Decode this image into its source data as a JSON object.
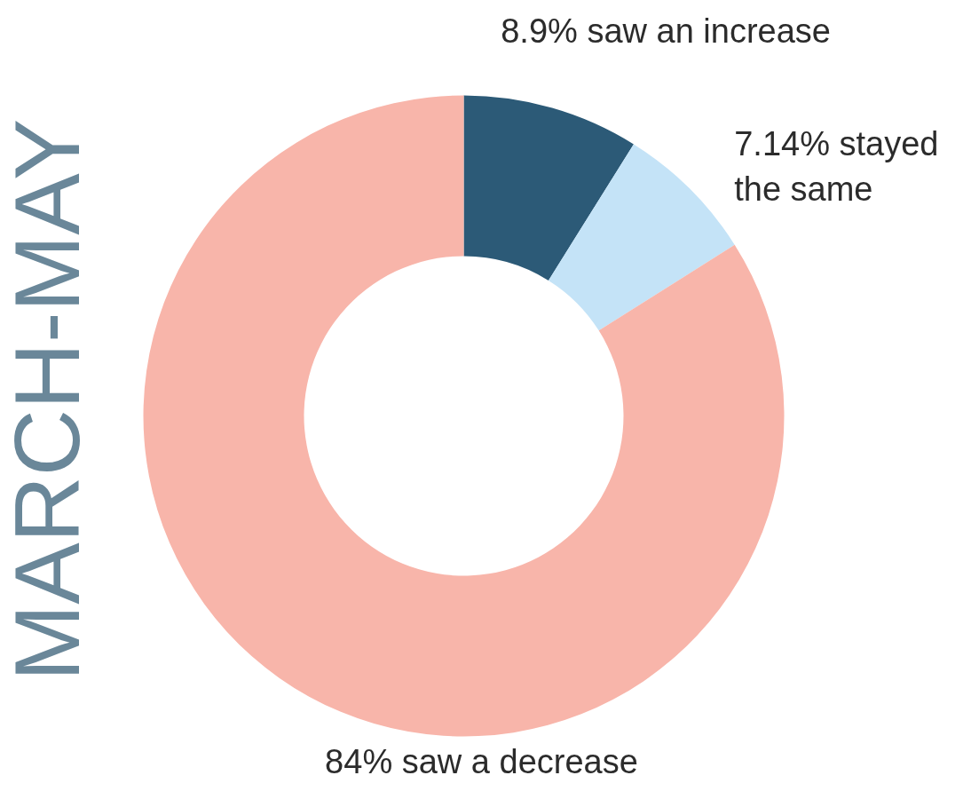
{
  "chart_data": {
    "type": "donut",
    "ylabel": "MARCH-MAY",
    "categories": [
      "8.9% saw an increase",
      "7.14% stayed the same",
      "84% saw a decrease"
    ],
    "values": [
      8.9,
      7.14,
      84
    ],
    "colors": [
      "#2c5a77",
      "#c4e3f7",
      "#f8b5aa"
    ]
  }
}
